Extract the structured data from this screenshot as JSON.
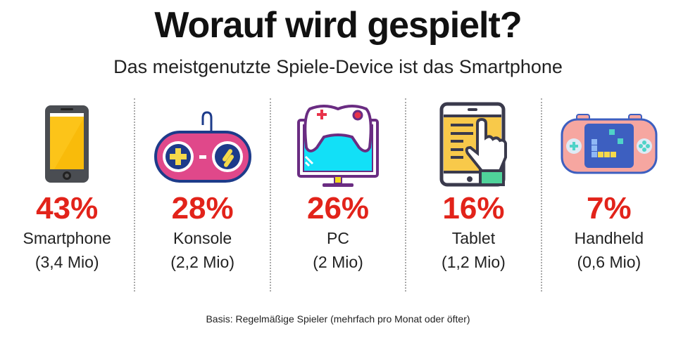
{
  "title": "Worauf wird gespielt?",
  "subtitle": "Das meistgenutzte Spiele-Device ist das Smartphone",
  "footnote": "Basis: Regelmäßige Spieler (mehrfach pro Monat oder öfter)",
  "accent_color": "#e2231a",
  "chart_data": {
    "type": "bar",
    "categories": [
      "Smartphone",
      "Konsole",
      "PC",
      "Tablet",
      "Handheld"
    ],
    "values": [
      43,
      28,
      26,
      16,
      7
    ],
    "value_labels": [
      "43%",
      "28%",
      "26%",
      "16%",
      "7%"
    ],
    "counts": [
      "(3,4 Mio)",
      "(2,2 Mio)",
      "(2 Mio)",
      "(1,2 Mio)",
      "(0,6 Mio)"
    ],
    "icons": [
      "smartphone-icon",
      "gamepad-icon",
      "pc-monitor-icon",
      "tablet-icon",
      "handheld-console-icon"
    ],
    "title": "Worauf wird gespielt?"
  }
}
